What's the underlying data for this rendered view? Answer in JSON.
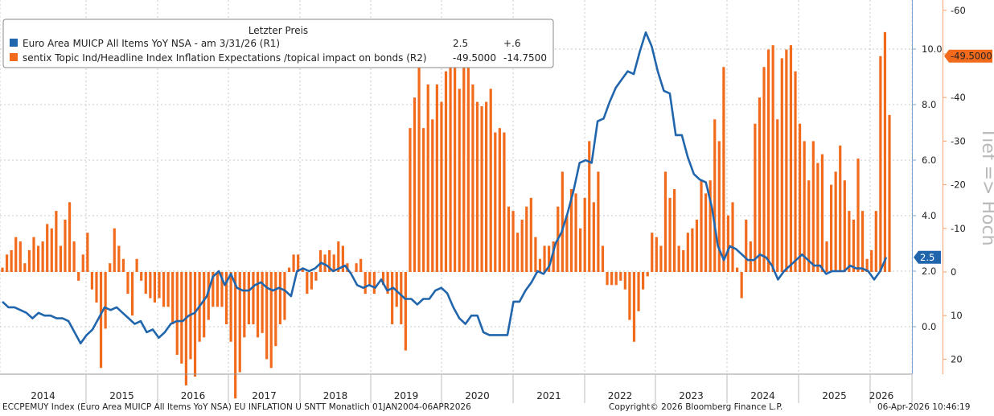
{
  "chart_data": {
    "type": "bar+line",
    "legend": {
      "header": "Letzter Preis",
      "entries": [
        {
          "name": "Euro Area MUICP All Items YoY NSA -  am 3/31/26  (R1)",
          "last": "2.5",
          "change": "+.6",
          "color": "#2166ac"
        },
        {
          "name": "sentix Topic Ind/Headline Index Inflation Expectations /topical impact on bonds  (R2)",
          "last": "-49.5000",
          "change": "-14.7500",
          "color": "#f26b1d"
        }
      ]
    },
    "axis_r1": {
      "ticks": [
        "0.0",
        "2.0",
        "4.0",
        "6.0",
        "8.0",
        "10.0"
      ],
      "range": [
        -2,
        11.9
      ]
    },
    "axis_r2": {
      "ticks": [
        "20",
        "10",
        "0",
        "-10",
        "-20",
        "-30",
        "-40",
        "-50",
        "-60"
      ],
      "range": [
        23,
        -63
      ]
    },
    "axis_r2_title": "Tief => Hoch",
    "years": [
      "2014",
      "2015",
      "2016",
      "2017",
      "2018",
      "2019",
      "2020",
      "2021",
      "2022",
      "2023",
      "2024",
      "2025",
      "2026"
    ],
    "last_labels": {
      "r1": "2.5",
      "r2": "-49.5000"
    },
    "series_r1": [
      0.9,
      0.7,
      0.7,
      0.6,
      0.5,
      0.3,
      0.5,
      0.4,
      0.4,
      0.3,
      0.3,
      0.2,
      -0.2,
      -0.6,
      -0.3,
      -0.1,
      0.3,
      0.7,
      0.6,
      0.7,
      0.5,
      0.3,
      0.1,
      0.2,
      -0.2,
      -0.1,
      -0.4,
      -0.2,
      0.1,
      0.2,
      0.2,
      0.4,
      0.5,
      0.8,
      1.1,
      1.8,
      2.0,
      1.5,
      1.9,
      1.4,
      1.3,
      1.3,
      1.5,
      1.6,
      1.4,
      1.3,
      1.4,
      1.3,
      1.1,
      2.0,
      2.1,
      2.0,
      2.1,
      2.3,
      2.2,
      2.0,
      2.1,
      2.2,
      1.9,
      1.5,
      1.4,
      1.5,
      1.4,
      1.7,
      1.3,
      1.4,
      1.2,
      1.0,
      1.0,
      0.8,
      1.0,
      1.0,
      1.3,
      1.4,
      1.2,
      0.7,
      0.3,
      0.1,
      0.4,
      0.4,
      -0.2,
      -0.3,
      -0.3,
      -0.3,
      -0.3,
      0.9,
      0.9,
      1.3,
      1.6,
      2.0,
      1.9,
      2.2,
      3.0,
      3.4,
      4.1,
      4.9,
      5.9,
      6.0,
      5.9,
      7.4,
      7.5,
      8.1,
      8.6,
      8.9,
      9.2,
      9.1,
      9.9,
      10.6,
      10.1,
      9.2,
      8.5,
      8.4,
      6.9,
      6.9,
      6.1,
      5.5,
      5.3,
      5.2,
      4.3,
      2.9,
      2.4,
      2.9,
      2.8,
      2.6,
      2.4,
      2.4,
      2.6,
      2.5,
      2.2,
      1.7,
      2.0,
      2.2,
      2.4,
      2.6,
      2.4,
      2.2,
      2.2,
      1.9,
      2.0,
      2.0,
      2.0,
      2.2,
      2.1,
      2.1,
      2.0,
      1.7,
      2.0,
      2.5
    ],
    "series_r2": [
      -1,
      -4,
      -5,
      -8,
      -7,
      -2,
      -5,
      -8,
      -6,
      -7,
      -11,
      -10,
      -14,
      -6,
      -12,
      -16,
      -7,
      2,
      -4,
      -9,
      4,
      7,
      22,
      13,
      -2,
      -10,
      -6,
      -3,
      5,
      10,
      -3,
      2,
      5,
      6,
      7,
      6,
      8,
      8,
      12,
      19,
      21,
      26,
      20,
      24,
      16,
      15,
      11,
      8,
      8,
      8,
      12,
      16,
      29,
      23,
      15,
      12,
      12,
      15,
      14,
      20,
      22,
      17,
      12,
      11,
      -1,
      -4,
      -4,
      -1,
      5,
      4,
      2,
      -5,
      -4,
      -5,
      -4,
      -7,
      -6,
      -2,
      0,
      -2,
      -3,
      5,
      3,
      5,
      0,
      3,
      5,
      12,
      8,
      12,
      18,
      -33,
      -40,
      -49,
      -33,
      -43,
      -35,
      -43,
      -39,
      -46,
      -49,
      -49,
      -42,
      -48,
      -56,
      -43,
      -39,
      -38,
      -39,
      -42,
      -32,
      -33,
      -32,
      -15,
      -14,
      -9,
      -12,
      -15,
      -17,
      -8,
      -3,
      -6,
      -6,
      -7,
      -15,
      -23,
      -13,
      -19,
      -18,
      -10,
      -17,
      -30,
      -16,
      -23,
      -6,
      3,
      3,
      3,
      2,
      4,
      11,
      16,
      9,
      4,
      1,
      -9,
      -8,
      -6,
      -23,
      -17,
      -19,
      -6,
      -5,
      -9,
      -10,
      -12,
      -21,
      -18,
      -21,
      -35,
      -30,
      -47,
      -13,
      -16,
      -1,
      6,
      -12,
      -7,
      -34,
      -40,
      -47,
      -51,
      -52,
      -35,
      -49,
      -51,
      -52,
      -46,
      -34,
      -30,
      -21,
      -30,
      -25,
      -27,
      -7,
      -20,
      -23,
      -29,
      -21,
      -14,
      -12,
      -26,
      -14,
      -3,
      -5,
      -14,
      -49.5,
      -55,
      -36
    ]
  }
}
